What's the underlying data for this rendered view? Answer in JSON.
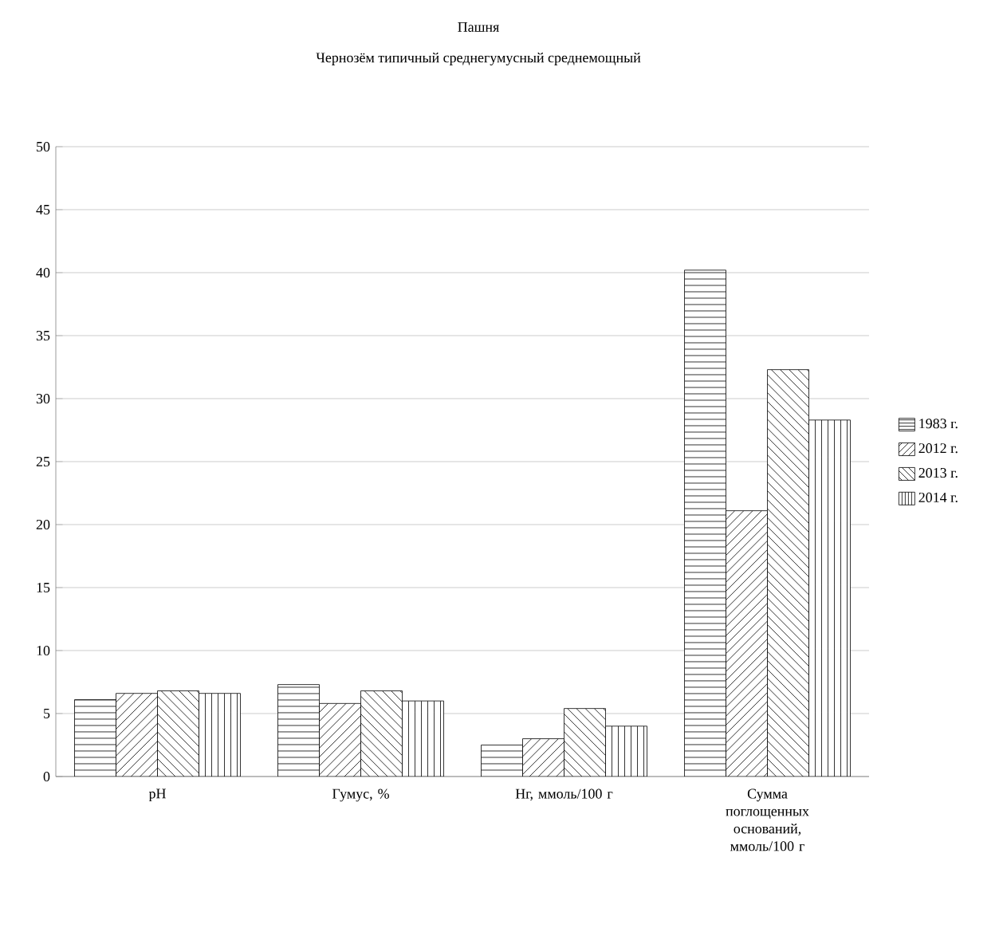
{
  "chart_data": {
    "type": "bar",
    "title": "Пашня",
    "subtitle": "Чернозём типичный среднегумусный среднемощный",
    "categories": [
      "pH",
      "Гумус, %",
      "Нг, ммоль/100 г",
      "Сумма поглощенных оснований, ммоль/100 г"
    ],
    "series": [
      {
        "name": "1983 г.",
        "color": "#000000",
        "values": [
          6.1,
          7.3,
          2.5,
          40.2
        ]
      },
      {
        "name": "2012 г.",
        "color": "#000000",
        "values": [
          6.6,
          5.8,
          3.0,
          21.1
        ]
      },
      {
        "name": "2013 г.",
        "color": "#000000",
        "values": [
          6.8,
          6.8,
          5.4,
          32.3
        ]
      },
      {
        "name": "2014 г.",
        "color": "#000000",
        "values": [
          6.6,
          6.0,
          4.0,
          28.3
        ]
      }
    ],
    "ylim": [
      0,
      50
    ],
    "yticks": [
      0,
      5,
      10,
      15,
      20,
      25,
      30,
      35,
      40,
      45,
      50
    ],
    "grid": "y",
    "legend": "right"
  }
}
